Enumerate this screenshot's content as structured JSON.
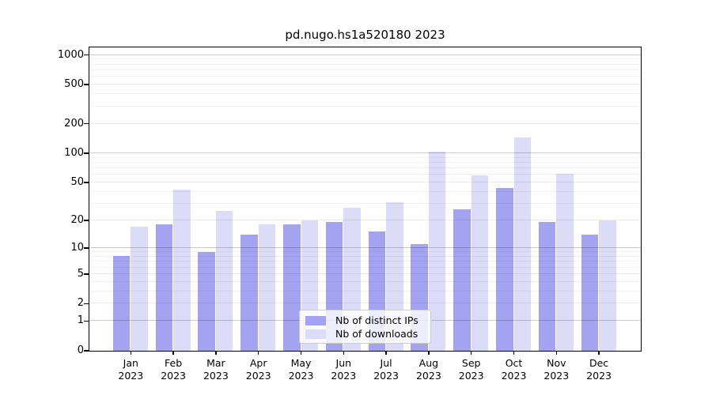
{
  "title": "pd.nugo.hs1a520180 2023",
  "colors": {
    "distinct_ips_bar": "#a3a3f1",
    "downloads_bar": "#dcdcf8",
    "axis": "#000000",
    "gridline_decade": "rgba(0,0,0,0.20)",
    "gridline_labeled": "rgba(0,0,0,0.08)",
    "gridline_minor": "rgba(0,0,0,0.05)"
  },
  "legend": {
    "items": [
      {
        "label": "Nb of distinct IPs",
        "color": "#a3a3f1"
      },
      {
        "label": "Nb of downloads",
        "color": "#dcdcf8"
      }
    ]
  },
  "chart_data": {
    "type": "bar",
    "title": "pd.nugo.hs1a520180 2023",
    "categories": [
      "Jan",
      "Feb",
      "Mar",
      "Apr",
      "May",
      "Jun",
      "Jul",
      "Aug",
      "Sep",
      "Oct",
      "Nov",
      "Dec"
    ],
    "year_label": "2023",
    "series": [
      {
        "name": "Nb of distinct IPs",
        "color": "#a3a3f1",
        "values": [
          8,
          18,
          9,
          14,
          18,
          19,
          15,
          11,
          26,
          43,
          19,
          14
        ]
      },
      {
        "name": "Nb of downloads",
        "color": "#dcdcf8",
        "values": [
          17,
          42,
          25,
          18,
          20,
          27,
          31,
          103,
          59,
          144,
          61,
          20
        ]
      }
    ],
    "xlabel": "",
    "ylabel": "",
    "yscale": "log10(1+x)",
    "yticks": [
      0,
      1,
      2,
      5,
      10,
      20,
      50,
      100,
      200,
      500,
      1000
    ],
    "ylim": [
      0,
      1200
    ],
    "grid": true,
    "legend_position": "bottom-center"
  }
}
